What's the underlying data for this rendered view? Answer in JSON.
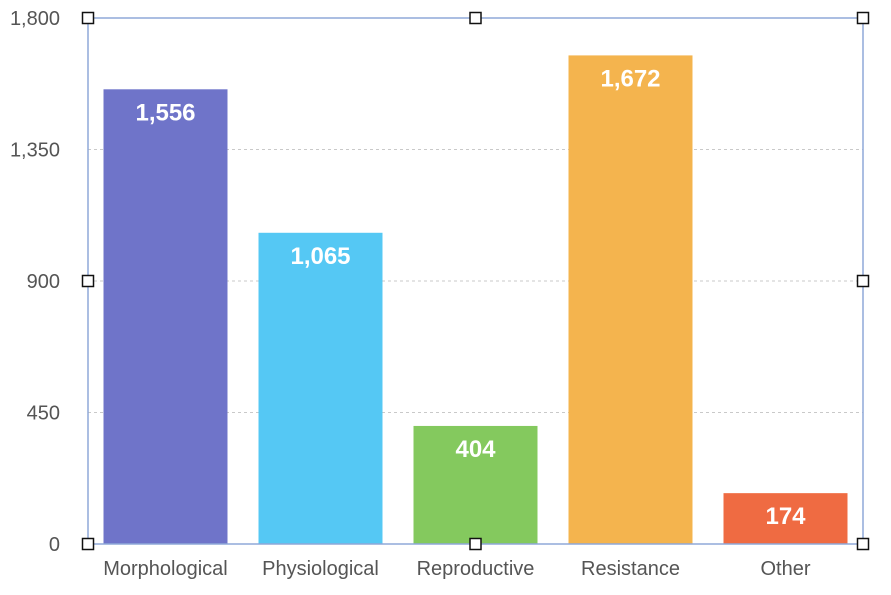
{
  "chart_data": {
    "type": "bar",
    "categories": [
      "Morphological",
      "Physiological",
      "Reproductive",
      "Resistance",
      "Other"
    ],
    "values": [
      1556,
      1065,
      404,
      1672,
      174
    ],
    "data_labels": [
      "1,556",
      "1,065",
      "404",
      "1,672",
      "174"
    ],
    "bar_colors": [
      "#6f74c9",
      "#55c8f4",
      "#84c95e",
      "#f4b44e",
      "#ef6b42"
    ],
    "title": "",
    "xlabel": "",
    "ylabel": "",
    "ylim": [
      0,
      1800
    ],
    "y_ticks": [
      0,
      450,
      900,
      1350,
      1800
    ],
    "y_tick_labels": [
      "0",
      "450",
      "900",
      "1,350",
      "1,800"
    ],
    "grid": true,
    "grid_color": "#c9c9c9",
    "selection_frame_color": "#8fa8d8",
    "selected": true
  }
}
